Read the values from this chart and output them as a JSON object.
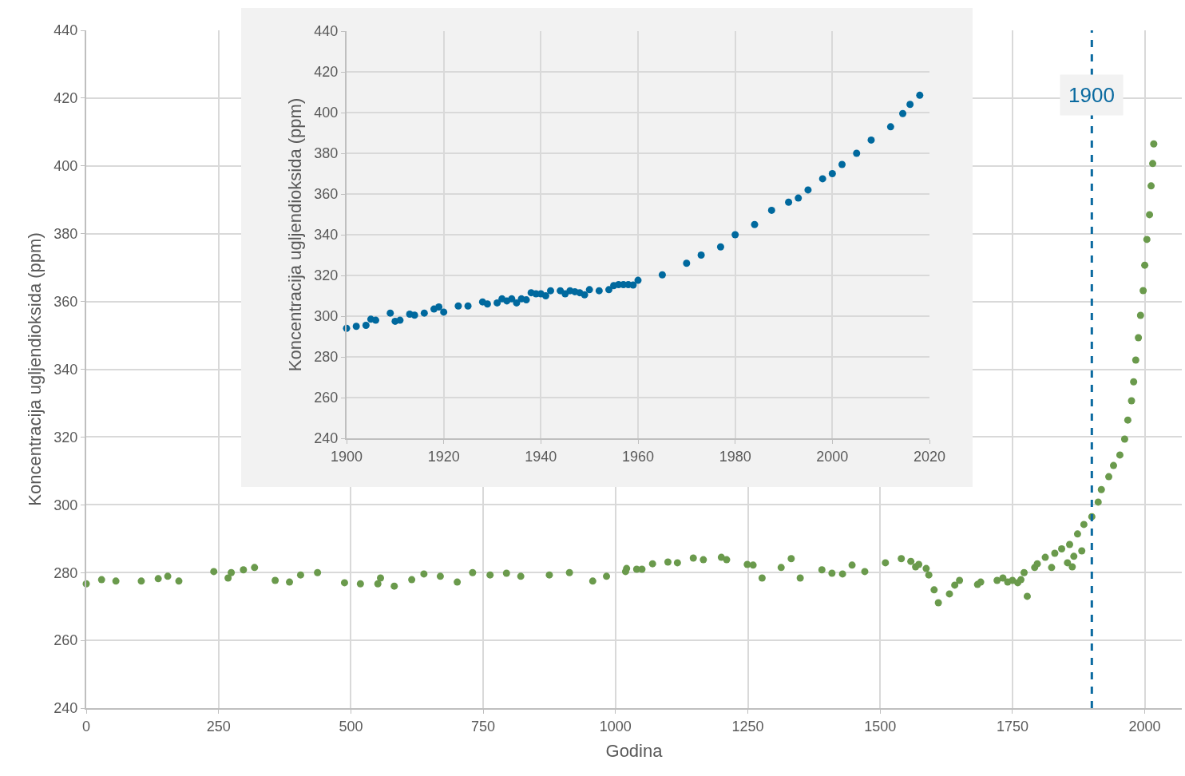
{
  "chart_data": [
    {
      "type": "scatter",
      "xlabel": "Godina",
      "ylabel": "Koncentracija ugljendioksida (ppm)",
      "marker": "circle",
      "grid": true,
      "x": [
        0,
        29,
        56,
        104,
        136,
        154,
        175,
        241,
        268,
        274,
        297,
        318,
        357,
        384,
        405,
        437,
        488,
        518,
        551,
        556,
        582,
        615,
        638,
        669,
        701,
        730,
        763,
        794,
        821,
        875,
        913,
        957,
        983,
        1019,
        1021,
        1040,
        1050,
        1070,
        1099,
        1117,
        1147,
        1166,
        1200,
        1210,
        1249,
        1260,
        1277,
        1313,
        1332,
        1349,
        1390,
        1409,
        1429,
        1447,
        1471,
        1510,
        1540,
        1558,
        1567,
        1573,
        1587,
        1592,
        1602,
        1610,
        1631,
        1641,
        1650,
        1684,
        1690,
        1721,
        1732,
        1741,
        1750,
        1760,
        1766,
        1772,
        1778,
        1792,
        1797,
        1812,
        1824,
        1830,
        1843,
        1854,
        1858,
        1863,
        1866,
        1873,
        1881,
        1885,
        1900,
        1912,
        1918,
        1932,
        1941,
        1953,
        1962,
        1968,
        1975,
        1979,
        1983,
        1988,
        1992,
        1997,
        2000,
        2004,
        2009,
        2012,
        2015,
        2017
      ],
      "series": [
        {
          "color": "#6a9a4c",
          "values": [
            276.7,
            277.9,
            277.5,
            277.5,
            278.2,
            278.9,
            277.5,
            280.3,
            278.4,
            280.0,
            280.8,
            281.5,
            277.7,
            277.2,
            279.3,
            280.0,
            277.0,
            276.7,
            276.7,
            278.4,
            276.0,
            277.9,
            279.6,
            278.9,
            277.2,
            280.0,
            279.3,
            279.8,
            278.9,
            279.3,
            280.0,
            277.5,
            278.9,
            280.3,
            281.2,
            281.0,
            281.0,
            282.6,
            283.1,
            282.9,
            284.3,
            283.8,
            284.5,
            283.8,
            282.4,
            282.2,
            278.4,
            281.5,
            284.1,
            278.4,
            280.8,
            279.8,
            279.6,
            282.2,
            280.3,
            282.9,
            284.1,
            283.3,
            281.7,
            282.4,
            281.2,
            279.3,
            274.9,
            271.1,
            273.7,
            276.3,
            277.7,
            276.5,
            277.2,
            277.7,
            278.4,
            277.2,
            277.7,
            277.0,
            277.9,
            280.0,
            273.0,
            281.5,
            282.6,
            284.5,
            281.5,
            285.7,
            287.0,
            282.9,
            288.3,
            281.7,
            284.8,
            291.4,
            286.4,
            294.2,
            296.5,
            300.8,
            304.5,
            308.3,
            311.6,
            314.7,
            319.4,
            325.0,
            330.7,
            336.3,
            342.7,
            349.3,
            355.9,
            363.2,
            370.7,
            378.3,
            385.6,
            394.1,
            400.7,
            406.5
          ]
        }
      ],
      "xlim": [
        0,
        2070
      ],
      "xticks": [
        0,
        250,
        500,
        750,
        1000,
        1250,
        1500,
        1750,
        2000
      ],
      "ylim": [
        240,
        440
      ],
      "yticks": [
        240,
        260,
        280,
        300,
        320,
        340,
        360,
        380,
        400,
        420,
        440
      ],
      "ref_lines": [
        {
          "axis": "x",
          "value": 1900,
          "label": "1900",
          "color": "#0a6aa0",
          "line_style": "dashed"
        }
      ]
    },
    {
      "type": "scatter",
      "ylabel": "Koncentracija ugljendioksida (ppm)",
      "marker": "circle",
      "grid": true,
      "x": [
        1900,
        1902,
        1904,
        1905,
        1906,
        1909,
        1910,
        1911,
        1913,
        1914,
        1916,
        1918,
        1919,
        1920,
        1923,
        1925,
        1928,
        1929,
        1931,
        1932,
        1933,
        1934,
        1935,
        1936,
        1937,
        1938,
        1939,
        1940,
        1941,
        1942,
        1944,
        1945,
        1946,
        1947,
        1948,
        1949,
        1950,
        1952,
        1954,
        1955,
        1956,
        1957,
        1958,
        1959,
        1960,
        1965,
        1970,
        1973,
        1977,
        1980,
        1984,
        1987.5,
        1991,
        1993,
        1995,
        1998,
        2000,
        2002,
        2005,
        2008,
        2012,
        2014.5,
        2016,
        2018
      ],
      "series": [
        {
          "color": "#00699e",
          "values": [
            294,
            295,
            295.5,
            298.5,
            298,
            301.5,
            297.5,
            298,
            301,
            300.5,
            301.5,
            303.5,
            304.5,
            302,
            305,
            305,
            307,
            306,
            306.5,
            308.5,
            307.5,
            308.5,
            306.5,
            308.5,
            308,
            311.5,
            311,
            311,
            310,
            312.5,
            312.5,
            311,
            312.5,
            312,
            311.5,
            310.5,
            313,
            312.5,
            313,
            315,
            315.5,
            315.5,
            315.5,
            315.3,
            317.6,
            320.3,
            326,
            330,
            334,
            340,
            345,
            352,
            356,
            358,
            362,
            367.5,
            370,
            374.5,
            380,
            386.5,
            393,
            399.5,
            404,
            408.5
          ]
        }
      ],
      "xlim": [
        1900,
        2020
      ],
      "xticks": [
        1900,
        1920,
        1940,
        1960,
        1980,
        2000,
        2020
      ],
      "ylim": [
        240,
        440
      ],
      "yticks": [
        240,
        260,
        280,
        300,
        320,
        340,
        360,
        380,
        400,
        420,
        440
      ]
    }
  ]
}
